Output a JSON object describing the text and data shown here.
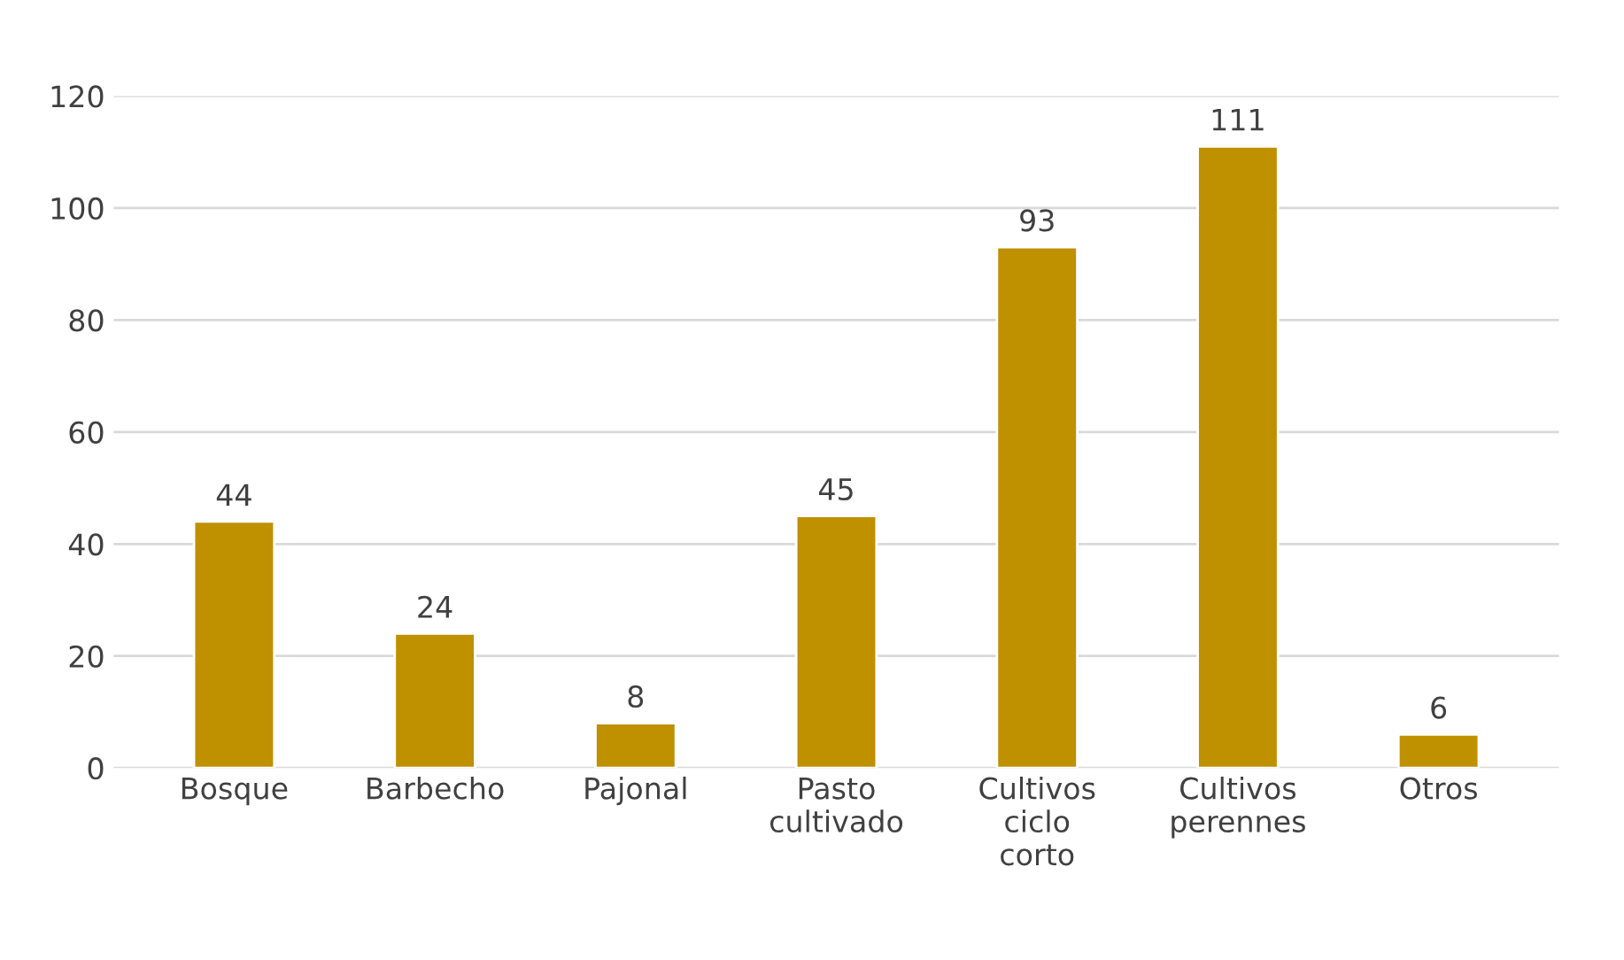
{
  "chart_data": {
    "type": "bar",
    "categories": [
      "Bosque",
      "Barbecho",
      "Pajonal",
      "Pasto cultivado",
      "Cultivos ciclo corto",
      "Cultivos perennes",
      "Otros"
    ],
    "values": [
      44,
      24,
      8,
      45,
      93,
      111,
      6
    ],
    "color": "#bf9000",
    "ylim": [
      0,
      120
    ],
    "yticks": [
      0,
      20,
      40,
      60,
      80,
      100,
      120
    ],
    "grid": "y",
    "data_labels": true
  }
}
